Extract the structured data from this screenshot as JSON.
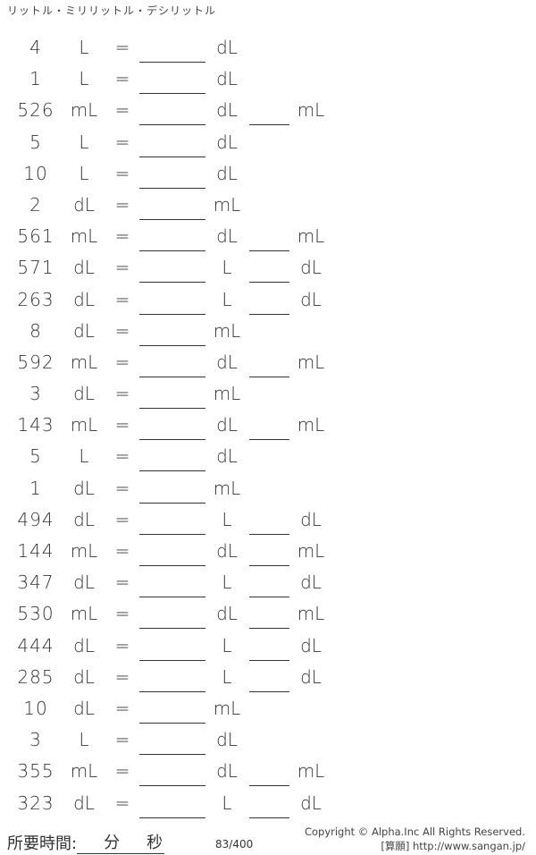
{
  "title": "リットル・ミリリットル・デシリットル",
  "equals": "=",
  "problems": [
    {
      "n": "4",
      "from": "L",
      "to1": "dL",
      "to2": ""
    },
    {
      "n": "1",
      "from": "L",
      "to1": "dL",
      "to2": ""
    },
    {
      "n": "526",
      "from": "mL",
      "to1": "dL",
      "to2": "mL"
    },
    {
      "n": "5",
      "from": "L",
      "to1": "dL",
      "to2": ""
    },
    {
      "n": "10",
      "from": "L",
      "to1": "dL",
      "to2": ""
    },
    {
      "n": "2",
      "from": "dL",
      "to1": "mL",
      "to2": ""
    },
    {
      "n": "561",
      "from": "mL",
      "to1": "dL",
      "to2": "mL"
    },
    {
      "n": "571",
      "from": "dL",
      "to1": "L",
      "to2": "dL"
    },
    {
      "n": "263",
      "from": "dL",
      "to1": "L",
      "to2": "dL"
    },
    {
      "n": "8",
      "from": "dL",
      "to1": "mL",
      "to2": ""
    },
    {
      "n": "592",
      "from": "mL",
      "to1": "dL",
      "to2": "mL"
    },
    {
      "n": "3",
      "from": "dL",
      "to1": "mL",
      "to2": ""
    },
    {
      "n": "143",
      "from": "mL",
      "to1": "dL",
      "to2": "mL"
    },
    {
      "n": "5",
      "from": "L",
      "to1": "dL",
      "to2": ""
    },
    {
      "n": "1",
      "from": "dL",
      "to1": "mL",
      "to2": ""
    },
    {
      "n": "494",
      "from": "dL",
      "to1": "L",
      "to2": "dL"
    },
    {
      "n": "144",
      "from": "mL",
      "to1": "dL",
      "to2": "mL"
    },
    {
      "n": "347",
      "from": "dL",
      "to1": "L",
      "to2": "dL"
    },
    {
      "n": "530",
      "from": "mL",
      "to1": "dL",
      "to2": "mL"
    },
    {
      "n": "444",
      "from": "dL",
      "to1": "L",
      "to2": "dL"
    },
    {
      "n": "285",
      "from": "dL",
      "to1": "L",
      "to2": "dL"
    },
    {
      "n": "10",
      "from": "dL",
      "to1": "mL",
      "to2": ""
    },
    {
      "n": "3",
      "from": "L",
      "to1": "dL",
      "to2": ""
    },
    {
      "n": "355",
      "from": "mL",
      "to1": "dL",
      "to2": "mL"
    },
    {
      "n": "323",
      "from": "dL",
      "to1": "L",
      "to2": "dL"
    }
  ],
  "footer": {
    "time_label": "所要時間:",
    "minutes": "分",
    "seconds": "秒",
    "page": "83/400",
    "copyright": "Copyright © Alpha.Inc All Rights Reserved.",
    "site": "[算願] http://www.sangan.jp/"
  }
}
